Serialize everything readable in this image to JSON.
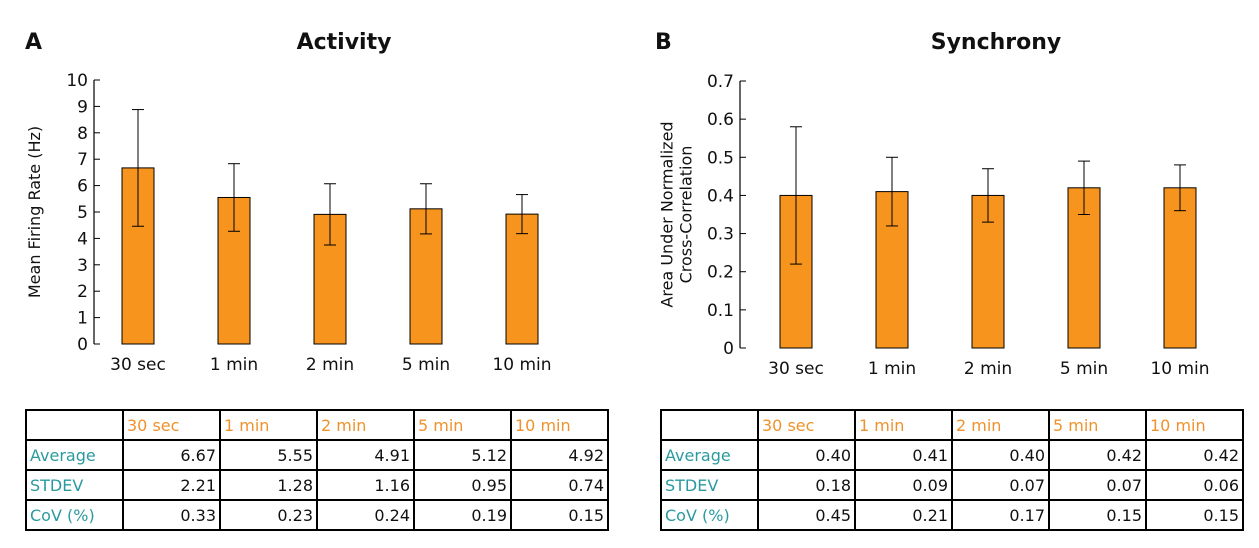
{
  "panels": {
    "A": {
      "letter": "A",
      "title": "Activity"
    },
    "B": {
      "letter": "B",
      "title": "Synchrony"
    }
  },
  "colors": {
    "bar": "#f7941d",
    "table_row_label": "#2a9aa0",
    "table_col_label": "#f0922b"
  },
  "chart_data": [
    {
      "type": "bar",
      "title": "Activity",
      "xlabel": "",
      "ylabel": "Mean Firing Rate (Hz)",
      "categories": [
        "30 sec",
        "1 min",
        "2 min",
        "5 min",
        "10 min"
      ],
      "values": [
        6.67,
        5.55,
        4.91,
        5.12,
        4.92
      ],
      "errors": [
        2.21,
        1.28,
        1.16,
        0.95,
        0.74
      ],
      "ylim": [
        0,
        10
      ],
      "yticks": [
        "0",
        "1",
        "2",
        "3",
        "4",
        "5",
        "6",
        "7",
        "8",
        "9",
        "10"
      ],
      "ytick_values": [
        0,
        1,
        2,
        3,
        4,
        5,
        6,
        7,
        8,
        9,
        10
      ]
    },
    {
      "type": "bar",
      "title": "Synchrony",
      "xlabel": "",
      "ylabel": [
        "Area Under Normalized",
        "Cross-Correlation"
      ],
      "categories": [
        "30 sec",
        "1 min",
        "2 min",
        "5 min",
        "10 min"
      ],
      "values": [
        0.4,
        0.41,
        0.4,
        0.42,
        0.42
      ],
      "errors": [
        0.18,
        0.09,
        0.07,
        0.07,
        0.06
      ],
      "ylim": [
        0,
        0.7
      ],
      "yticks": [
        "0",
        "0.1",
        "0.2",
        "0.3",
        "0.4",
        "0.5",
        "0.6",
        "0.7"
      ],
      "ytick_values": [
        0,
        0.1,
        0.2,
        0.3,
        0.4,
        0.5,
        0.6,
        0.7
      ]
    }
  ],
  "tables": {
    "A": {
      "columns": [
        "30 sec",
        "1 min",
        "2 min",
        "5 min",
        "10 min"
      ],
      "rows": [
        {
          "label": "Average",
          "values": [
            "6.67",
            "5.55",
            "4.91",
            "5.12",
            "4.92"
          ]
        },
        {
          "label": "STDEV",
          "values": [
            "2.21",
            "1.28",
            "1.16",
            "0.95",
            "0.74"
          ]
        },
        {
          "label": "CoV (%)",
          "values": [
            "0.33",
            "0.23",
            "0.24",
            "0.19",
            "0.15"
          ]
        }
      ]
    },
    "B": {
      "columns": [
        "30 sec",
        "1 min",
        "2 min",
        "5 min",
        "10 min"
      ],
      "rows": [
        {
          "label": "Average",
          "values": [
            "0.40",
            "0.41",
            "0.40",
            "0.42",
            "0.42"
          ]
        },
        {
          "label": "STDEV",
          "values": [
            "0.18",
            "0.09",
            "0.07",
            "0.07",
            "0.06"
          ]
        },
        {
          "label": "CoV (%)",
          "values": [
            "0.45",
            "0.21",
            "0.17",
            "0.15",
            "0.15"
          ]
        }
      ]
    }
  }
}
